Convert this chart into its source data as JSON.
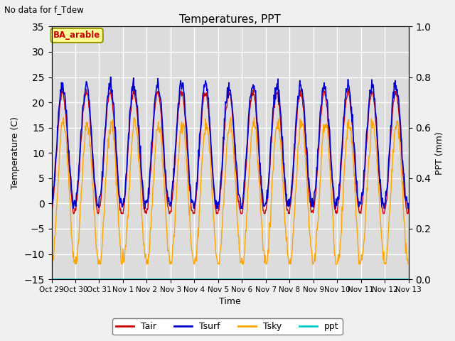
{
  "title": "Temperatures, PPT",
  "suptitle": "No data for f_Tdew",
  "xlabel": "Time",
  "ylabel_left": "Temperature (C)",
  "ylabel_right": "PPT (mm)",
  "annotation": "BA_arable",
  "ylim_left": [
    -15,
    35
  ],
  "ylim_right": [
    0.0,
    1.0
  ],
  "yticks_left": [
    -15,
    -10,
    -5,
    0,
    5,
    10,
    15,
    20,
    25,
    30,
    35
  ],
  "yticks_right": [
    0.0,
    0.2,
    0.4,
    0.6,
    0.8,
    1.0
  ],
  "x_tick_labels": [
    "Oct 29",
    "Oct 30",
    "Oct 31",
    "Nov 1",
    "Nov 2",
    "Nov 3",
    "Nov 4",
    "Nov 5",
    "Nov 6",
    "Nov 7",
    "Nov 8",
    "Nov 9",
    "Nov 10",
    "Nov 11",
    "Nov 12",
    "Nov 13"
  ],
  "color_tair": "#cc0000",
  "color_tsurf": "#0000cc",
  "color_tsky": "#ffa500",
  "color_ppt": "#00cccc",
  "legend_labels": [
    "Tair",
    "Tsurf",
    "Tsky",
    "ppt"
  ],
  "bg_color": "#dcdcdc",
  "n_points": 720,
  "n_days": 15
}
